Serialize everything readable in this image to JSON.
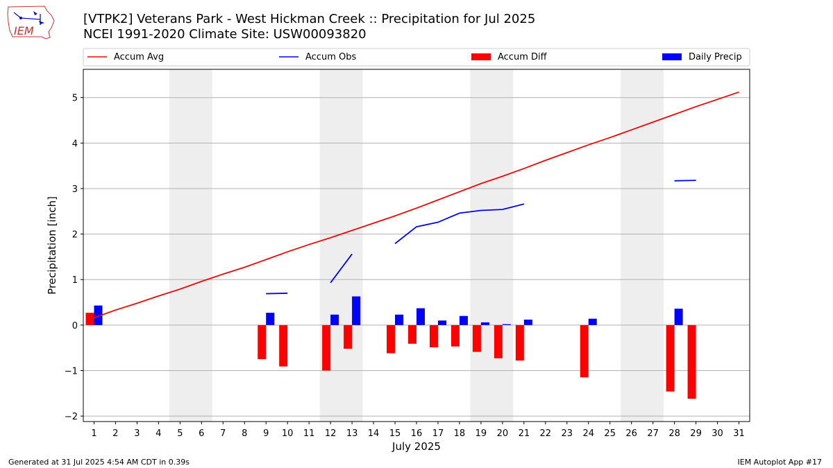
{
  "header": {
    "title": "[VTPK2] Veterans Park - West Hickman Creek :: Precipitation for Jul 2025",
    "subtitle": "NCEI 1991-2020 Climate Site: USW00093820"
  },
  "logo": {
    "text": "IEM",
    "icon": "iowa-state-outline-weather-instruments"
  },
  "footer": {
    "generated": "Generated at 31 Jul 2025 4:54 AM CDT in 0.39s",
    "app": "IEM Autoplot App #17"
  },
  "colors": {
    "avg": "#ff0000",
    "obs": "#0000ff",
    "diff": "#ff0000",
    "daily": "#0000ff",
    "weekend": "#eeeeee",
    "grid": "#b0b0b0"
  },
  "chart_data": {
    "type": "bar",
    "xlabel": "July 2025",
    "ylabel": "Precipitation [inch]",
    "xlim": [
      0.5,
      31.5
    ],
    "ylim": [
      -2.12,
      5.62
    ],
    "yticks": [
      -2,
      -1,
      0,
      1,
      2,
      3,
      4,
      5
    ],
    "ytick_labels": [
      "−2",
      "−1",
      "0",
      "1",
      "2",
      "3",
      "4",
      "5"
    ],
    "days": [
      1,
      2,
      3,
      4,
      5,
      6,
      7,
      8,
      9,
      10,
      11,
      12,
      13,
      14,
      15,
      16,
      17,
      18,
      19,
      20,
      21,
      22,
      23,
      24,
      25,
      26,
      27,
      28,
      29,
      30,
      31
    ],
    "grid": "horizontal",
    "legend_position": "top",
    "legend": [
      "Accum Avg",
      "Accum Obs",
      "Accum Diff",
      "Daily Precip"
    ],
    "weekend_spans": [
      [
        4.5,
        6.5
      ],
      [
        11.5,
        13.5
      ],
      [
        18.5,
        20.5
      ],
      [
        25.5,
        27.5
      ]
    ],
    "accum_avg": [
      0.16,
      0.33,
      0.48,
      0.64,
      0.79,
      0.96,
      1.12,
      1.27,
      1.44,
      1.61,
      1.77,
      1.92,
      2.08,
      2.24,
      2.4,
      2.57,
      2.75,
      2.93,
      3.11,
      3.27,
      3.44,
      3.62,
      3.79,
      3.96,
      4.12,
      4.29,
      4.46,
      4.63,
      4.8,
      4.96,
      5.12
    ],
    "accum_obs_segments": [
      {
        "x": [
          9,
          10
        ],
        "y": [
          0.69,
          0.7
        ]
      },
      {
        "x": [
          12,
          13
        ],
        "y": [
          0.93,
          1.56
        ]
      },
      {
        "x": [
          15,
          16,
          17,
          18,
          19,
          20,
          21
        ],
        "y": [
          1.79,
          2.16,
          2.26,
          2.46,
          2.52,
          2.54,
          2.66
        ]
      },
      {
        "x": [
          28,
          29
        ],
        "y": [
          3.17,
          3.18
        ]
      }
    ],
    "accum_diff": [
      {
        "day": 1,
        "value": 0.27
      },
      {
        "day": 9,
        "value": -0.75
      },
      {
        "day": 10,
        "value": -0.91
      },
      {
        "day": 12,
        "value": -1.0
      },
      {
        "day": 13,
        "value": -0.52
      },
      {
        "day": 15,
        "value": -0.62
      },
      {
        "day": 16,
        "value": -0.41
      },
      {
        "day": 17,
        "value": -0.49
      },
      {
        "day": 18,
        "value": -0.47
      },
      {
        "day": 19,
        "value": -0.59
      },
      {
        "day": 20,
        "value": -0.73
      },
      {
        "day": 21,
        "value": -0.78
      },
      {
        "day": 24,
        "value": -1.15
      },
      {
        "day": 28,
        "value": -1.46
      },
      {
        "day": 29,
        "value": -1.62
      }
    ],
    "daily_precip": [
      {
        "day": 1,
        "value": 0.43
      },
      {
        "day": 9,
        "value": 0.27
      },
      {
        "day": 12,
        "value": 0.23
      },
      {
        "day": 13,
        "value": 0.63
      },
      {
        "day": 15,
        "value": 0.23
      },
      {
        "day": 16,
        "value": 0.37
      },
      {
        "day": 17,
        "value": 0.1
      },
      {
        "day": 18,
        "value": 0.2
      },
      {
        "day": 19,
        "value": 0.06
      },
      {
        "day": 20,
        "value": 0.02
      },
      {
        "day": 21,
        "value": 0.12
      },
      {
        "day": 24,
        "value": 0.14
      },
      {
        "day": 28,
        "value": 0.36
      }
    ]
  }
}
